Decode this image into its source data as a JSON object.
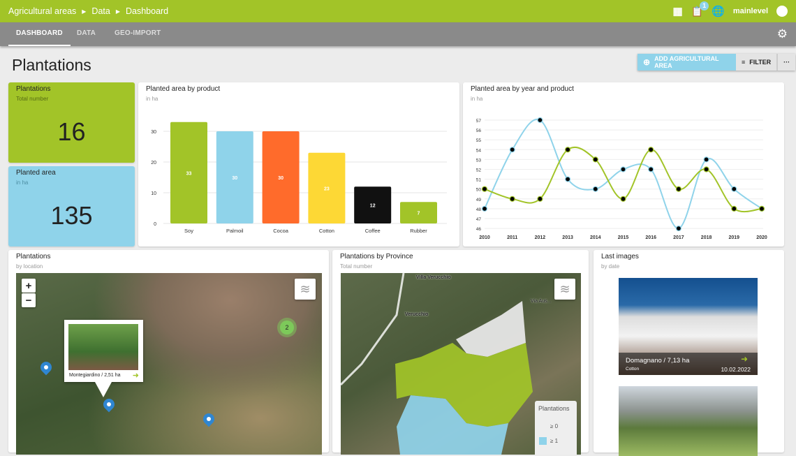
{
  "header": {
    "breadcrumb": [
      "Agricultural areas",
      "Data",
      "Dashboard"
    ],
    "notification_count": "1",
    "username": "mainlevel"
  },
  "tabs": [
    "DASHBOARD",
    "DATA",
    "GEO-IMPORT"
  ],
  "page": {
    "title": "Plantations",
    "add_label": "ADD AGRICULTURAL AREA",
    "filter_label": "FILTER",
    "more_label": "···"
  },
  "kpi": [
    {
      "title": "Plantations",
      "subtitle": "Total number",
      "value": "16",
      "color": "#a2c428"
    },
    {
      "title": "Planted area",
      "subtitle": "in ha",
      "value": "135",
      "color": "#8fd3ea"
    }
  ],
  "bar_chart": {
    "title": "Planted area by product",
    "subtitle": "in ha"
  },
  "line_chart": {
    "title": "Planted area by year and product",
    "subtitle": "in ha"
  },
  "map1": {
    "title": "Plantations",
    "subtitle": "by location",
    "popup": "Montegiardino / 2,51 ha",
    "cluster": "2",
    "zoom_in": "+",
    "zoom_out": "−"
  },
  "map2": {
    "title": "Plantations by Province",
    "subtitle": "Total number",
    "labels": [
      "Villa Verucchio",
      "Verucchio",
      "Via Aus..."
    ],
    "legend_title": "Plantations",
    "legend": [
      "≥ 0",
      "≥ 1"
    ]
  },
  "images": {
    "title": "Last images",
    "subtitle": "by date",
    "items": [
      {
        "caption": "Domagnano / 7,13 ha",
        "product": "Cotton",
        "date": "10.02.2022"
      }
    ]
  },
  "chart_data": [
    {
      "type": "bar",
      "title": "Planted area by product",
      "ylabel": "in ha",
      "categories": [
        "Soy",
        "Palmoil",
        "Cocoa",
        "Cotton",
        "Coffee",
        "Rubber"
      ],
      "values": [
        33,
        30,
        30,
        23,
        12,
        7
      ],
      "colors": [
        "#a2c428",
        "#8fd3ea",
        "#ff6b2b",
        "#fdd835",
        "#111111",
        "#a2c428"
      ],
      "ylim": [
        0,
        35
      ],
      "yticks": [
        0,
        10,
        20,
        30
      ],
      "grid": true
    },
    {
      "type": "line",
      "title": "Planted area by year and product",
      "ylabel": "in ha",
      "x": [
        2010,
        2011,
        2012,
        2013,
        2014,
        2015,
        2016,
        2017,
        2018,
        2019,
        2020
      ],
      "ylim": [
        46,
        57
      ],
      "yticks": [
        46,
        47,
        48,
        49,
        50,
        51,
        52,
        53,
        54,
        55,
        56,
        57
      ],
      "grid": true,
      "series": [
        {
          "name": "blue",
          "color": "#8fd3ea",
          "values": [
            48,
            54,
            57,
            51,
            50,
            52,
            52,
            46,
            53,
            50,
            48
          ]
        },
        {
          "name": "green",
          "color": "#a2c428",
          "values": [
            50,
            49,
            49,
            54,
            53,
            49,
            54,
            50,
            52,
            48,
            48
          ]
        }
      ]
    }
  ]
}
